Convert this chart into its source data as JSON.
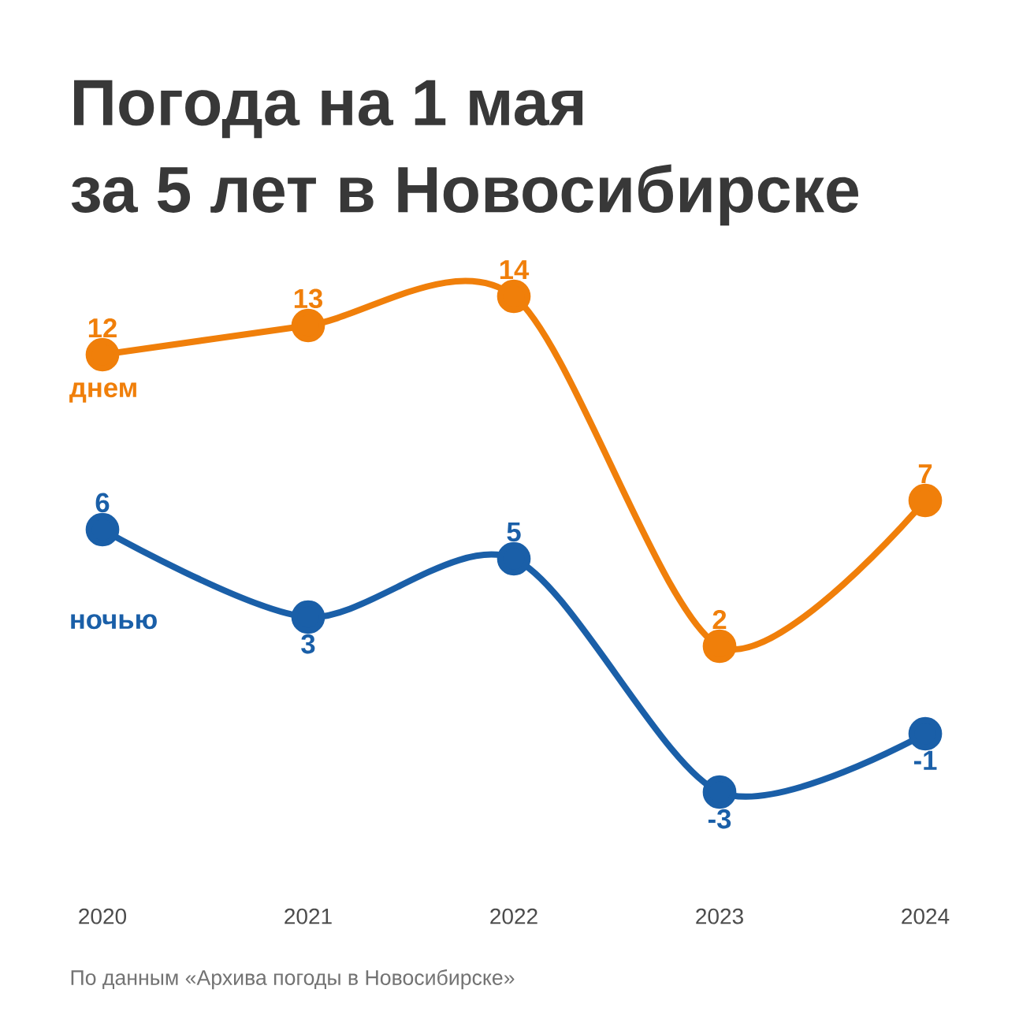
{
  "chart_data": {
    "type": "line",
    "title": "Погода на 1 мая",
    "subtitle": "за 5 лет в Новосибирске",
    "categories": [
      "2020",
      "2021",
      "2022",
      "2023",
      "2024"
    ],
    "series": [
      {
        "name": "днем",
        "color": "#f07f0a",
        "values": [
          12,
          13,
          14,
          2,
          7
        ]
      },
      {
        "name": "ночью",
        "color": "#1a5fa8",
        "values": [
          6,
          3,
          5,
          -3,
          -1
        ]
      }
    ],
    "data_labels": true,
    "marker": "circle",
    "line_style": "solid",
    "annotations": [
      "По данным «Архива погоды в Новосибирске»"
    ]
  }
}
